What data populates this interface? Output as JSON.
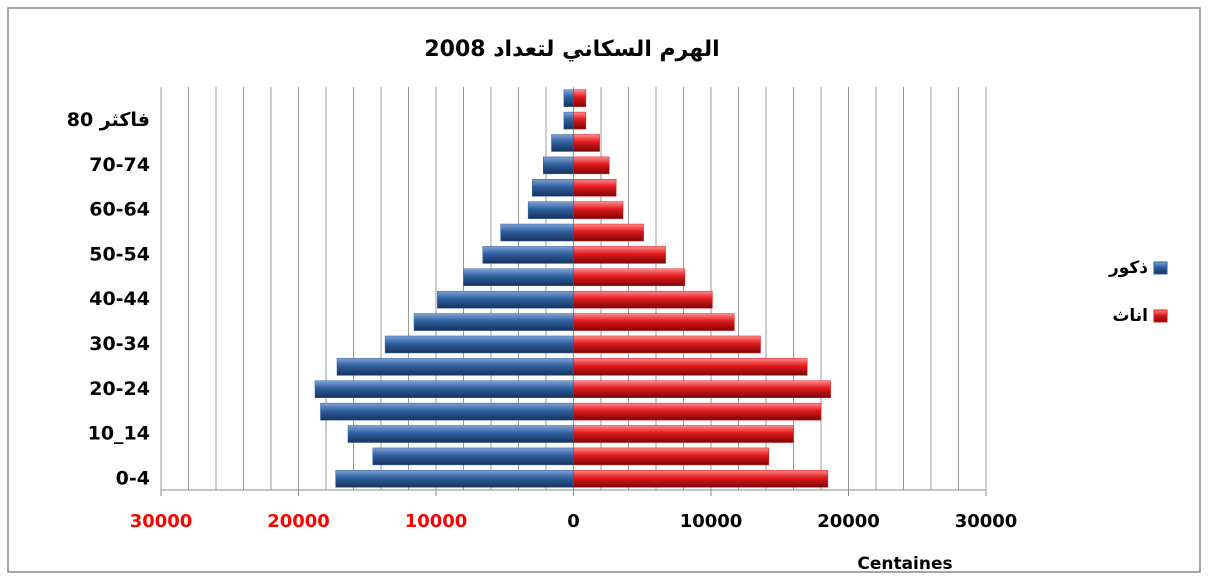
{
  "chart_data": {
    "type": "pyramid",
    "title": "الهرم السكاني لتعداد 2008",
    "x_label": "Centaines",
    "categories": [
      "0-4",
      null,
      "10_14",
      null,
      "20-24",
      null,
      "30-34",
      null,
      "40-44",
      null,
      "50-54",
      null,
      "60-64",
      null,
      "70-74",
      null,
      "80 فاكثر",
      null
    ],
    "series": [
      {
        "name": "ذكور",
        "color": "#2f5f9e",
        "values": [
          -17300,
          -14600,
          -16400,
          -18400,
          -18800,
          -17200,
          -13700,
          -11600,
          -9900,
          -8000,
          -6600,
          -5300,
          -3300,
          -3000,
          -2200,
          -1600,
          -700,
          -700
        ]
      },
      {
        "name": "اناث",
        "color": "#e0181b",
        "values": [
          18500,
          14200,
          16000,
          18000,
          18700,
          17000,
          13600,
          11700,
          10100,
          8100,
          6700,
          5100,
          3600,
          3100,
          2600,
          1900,
          900,
          900
        ]
      }
    ],
    "xlim": [
      -30000,
      30000
    ],
    "xticks": [
      {
        "value": -30000,
        "label": "30000"
      },
      {
        "value": -20000,
        "label": "20000"
      },
      {
        "value": -10000,
        "label": "10000"
      },
      0,
      10000,
      20000,
      30000
    ],
    "grid_lines": [
      -30000,
      -28000,
      -26000,
      -24000,
      -22000,
      -20000,
      -18000,
      -16000,
      -14000,
      -12000,
      -10000,
      -8000,
      -6000,
      -4000,
      -2000,
      0,
      2000,
      4000,
      6000,
      8000,
      10000,
      12000,
      14000,
      16000,
      18000,
      20000,
      22000,
      24000,
      26000,
      28000,
      30000
    ],
    "negative_tick_color": "#ff0000",
    "legend": "right"
  }
}
